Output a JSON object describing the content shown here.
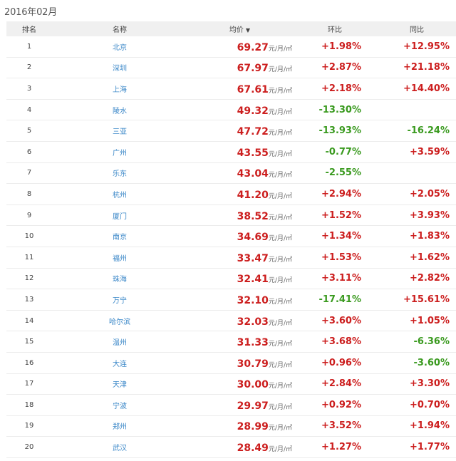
{
  "date_label": "2016年02月",
  "headers": {
    "rank": "排名",
    "name": "名称",
    "price": "均价",
    "hb": "环比",
    "tb": "同比"
  },
  "sort_icon": "sort-desc-icon",
  "colors": {
    "up": "#cc1e1e",
    "down": "#3a9a1f",
    "link": "#3a87c8"
  },
  "rows": [
    {
      "rank": "1",
      "name": "北京",
      "price": "69.27",
      "unit": "元/月/㎡",
      "hb": "+1.98%",
      "tb": "+12.95%"
    },
    {
      "rank": "2",
      "name": "深圳",
      "price": "67.97",
      "unit": "元/月/㎡",
      "hb": "+2.87%",
      "tb": "+21.18%"
    },
    {
      "rank": "3",
      "name": "上海",
      "price": "67.61",
      "unit": "元/月/㎡",
      "hb": "+2.18%",
      "tb": "+14.40%"
    },
    {
      "rank": "4",
      "name": "陵水",
      "price": "49.32",
      "unit": "元/月/㎡",
      "hb": "-13.30%",
      "tb": ""
    },
    {
      "rank": "5",
      "name": "三亚",
      "price": "47.72",
      "unit": "元/月/㎡",
      "hb": "-13.93%",
      "tb": "-16.24%"
    },
    {
      "rank": "6",
      "name": "广州",
      "price": "43.55",
      "unit": "元/月/㎡",
      "hb": "-0.77%",
      "tb": "+3.59%"
    },
    {
      "rank": "7",
      "name": "乐东",
      "price": "43.04",
      "unit": "元/月/㎡",
      "hb": "-2.55%",
      "tb": ""
    },
    {
      "rank": "8",
      "name": "杭州",
      "price": "41.20",
      "unit": "元/月/㎡",
      "hb": "+2.94%",
      "tb": "+2.05%"
    },
    {
      "rank": "9",
      "name": "厦门",
      "price": "38.52",
      "unit": "元/月/㎡",
      "hb": "+1.52%",
      "tb": "+3.93%"
    },
    {
      "rank": "10",
      "name": "南京",
      "price": "34.69",
      "unit": "元/月/㎡",
      "hb": "+1.34%",
      "tb": "+1.83%"
    },
    {
      "rank": "11",
      "name": "福州",
      "price": "33.47",
      "unit": "元/月/㎡",
      "hb": "+1.53%",
      "tb": "+1.62%"
    },
    {
      "rank": "12",
      "name": "珠海",
      "price": "32.41",
      "unit": "元/月/㎡",
      "hb": "+3.11%",
      "tb": "+2.82%"
    },
    {
      "rank": "13",
      "name": "万宁",
      "price": "32.10",
      "unit": "元/月/㎡",
      "hb": "-17.41%",
      "tb": "+15.61%"
    },
    {
      "rank": "14",
      "name": "哈尔滨",
      "price": "32.03",
      "unit": "元/月/㎡",
      "hb": "+3.60%",
      "tb": "+1.05%"
    },
    {
      "rank": "15",
      "name": "温州",
      "price": "31.33",
      "unit": "元/月/㎡",
      "hb": "+3.68%",
      "tb": "-6.36%"
    },
    {
      "rank": "16",
      "name": "大连",
      "price": "30.79",
      "unit": "元/月/㎡",
      "hb": "+0.96%",
      "tb": "-3.60%"
    },
    {
      "rank": "17",
      "name": "天津",
      "price": "30.00",
      "unit": "元/月/㎡",
      "hb": "+2.84%",
      "tb": "+3.30%"
    },
    {
      "rank": "18",
      "name": "宁波",
      "price": "29.97",
      "unit": "元/月/㎡",
      "hb": "+0.92%",
      "tb": "+0.70%"
    },
    {
      "rank": "19",
      "name": "郑州",
      "price": "28.99",
      "unit": "元/月/㎡",
      "hb": "+3.52%",
      "tb": "+1.94%"
    },
    {
      "rank": "20",
      "name": "武汉",
      "price": "28.49",
      "unit": "元/月/㎡",
      "hb": "+1.27%",
      "tb": "+1.77%"
    }
  ]
}
